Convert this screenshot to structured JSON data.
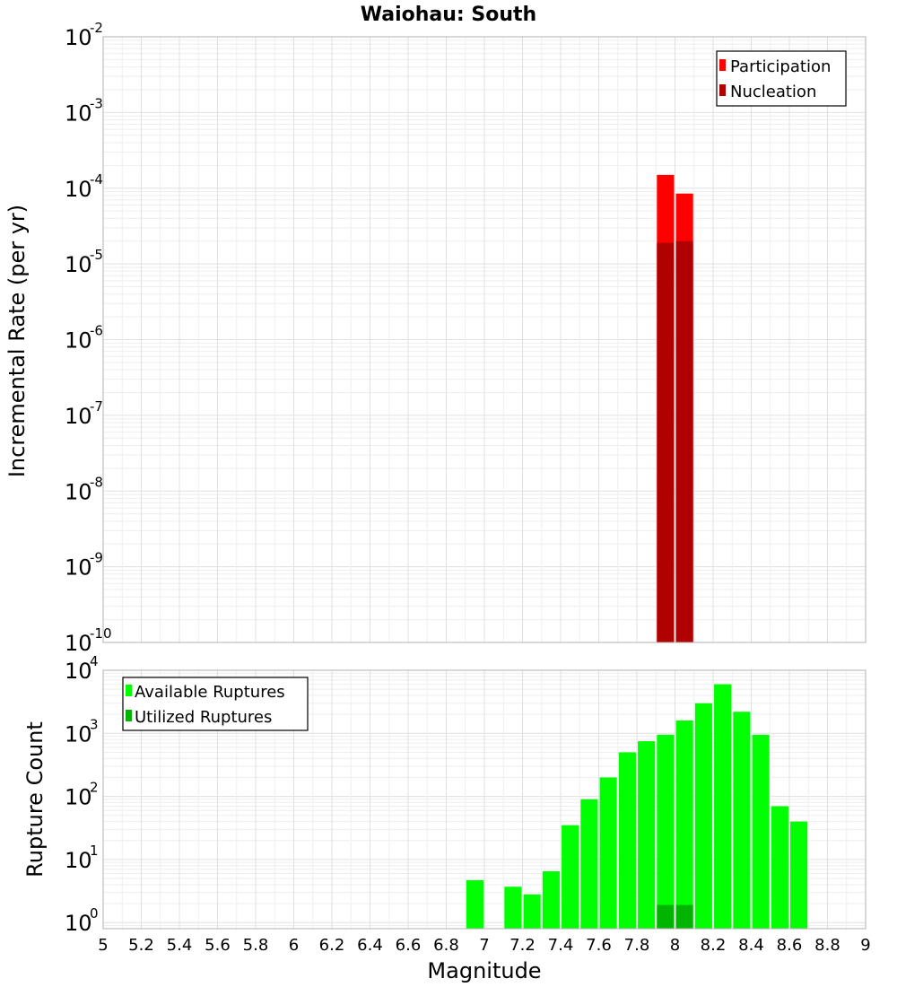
{
  "chart_data": [
    {
      "type": "bar",
      "title": "Waiohau: South",
      "ylabel": "Incremental Rate (per yr)",
      "xlim": [
        5,
        9
      ],
      "ylim": [
        1e-10,
        0.01
      ],
      "yscale": "log",
      "grid": true,
      "legend_position": "top-right",
      "y_ticks": [
        {
          "base": "10",
          "exp": "-2"
        },
        {
          "base": "10",
          "exp": "-3"
        },
        {
          "base": "10",
          "exp": "-4"
        },
        {
          "base": "10",
          "exp": "-5"
        },
        {
          "base": "10",
          "exp": "-6"
        },
        {
          "base": "10",
          "exp": "-7"
        },
        {
          "base": "10",
          "exp": "-8"
        },
        {
          "base": "10",
          "exp": "-9"
        },
        {
          "base": "10",
          "exp": "-10"
        }
      ],
      "series": [
        {
          "name": "Participation",
          "color": "#ff0000",
          "x": [
            7.95,
            8.05
          ],
          "values": [
            0.00015,
            8.5e-05
          ]
        },
        {
          "name": "Nucleation",
          "color": "#b00000",
          "x": [
            7.95,
            8.05
          ],
          "values": [
            1.9e-05,
            2e-05
          ]
        }
      ]
    },
    {
      "type": "bar",
      "ylabel": "Rupture Count",
      "xlabel": "Magnitude",
      "xlim": [
        5,
        9
      ],
      "ylim": [
        0.8,
        10000
      ],
      "yscale": "log",
      "grid": true,
      "legend_position": "top-left",
      "x_ticks": [
        "5",
        "5.2",
        "5.4",
        "5.6",
        "5.8",
        "6",
        "6.2",
        "6.4",
        "6.6",
        "6.8",
        "7",
        "7.2",
        "7.4",
        "7.6",
        "7.8",
        "8",
        "8.2",
        "8.4",
        "8.6",
        "8.8",
        "9"
      ],
      "y_ticks": [
        {
          "base": "10",
          "exp": "4"
        },
        {
          "base": "10",
          "exp": "3"
        },
        {
          "base": "10",
          "exp": "2"
        },
        {
          "base": "10",
          "exp": "1"
        },
        {
          "base": "10",
          "exp": "0"
        }
      ],
      "series": [
        {
          "name": "Available Ruptures",
          "color": "#00ff00",
          "x": [
            6.95,
            7.15,
            7.25,
            7.35,
            7.45,
            7.55,
            7.65,
            7.75,
            7.85,
            7.95,
            8.05,
            8.15,
            8.25,
            8.35,
            8.45,
            8.55,
            8.65
          ],
          "values": [
            4.7,
            3.7,
            2.8,
            6.5,
            35,
            90,
            200,
            500,
            750,
            950,
            1600,
            3000,
            6000,
            2200,
            950,
            70,
            40
          ]
        },
        {
          "name": "Utilized Ruptures",
          "color": "#00b400",
          "x": [
            7.95,
            8.05
          ],
          "values": [
            1.9,
            1.9
          ]
        }
      ]
    }
  ]
}
